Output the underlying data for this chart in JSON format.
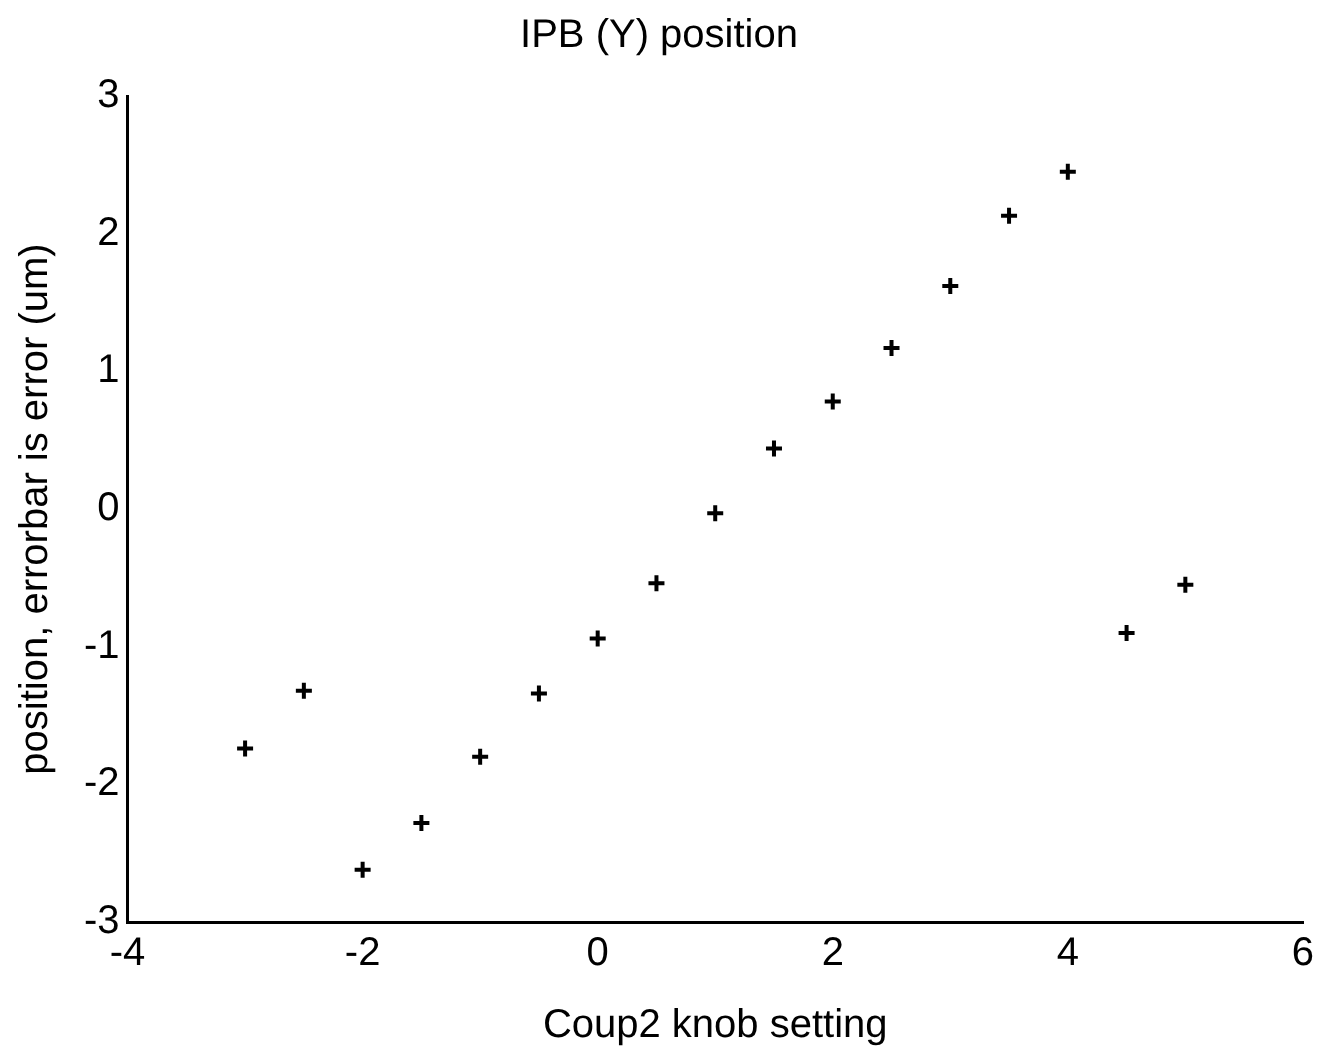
{
  "chart_data": {
    "type": "scatter",
    "title": "IPB (Y) position",
    "xlabel": "Coup2 knob setting",
    "ylabel": "position, errorbar is error (um)",
    "x": [
      -3,
      -2.5,
      -2,
      -1.5,
      -1,
      -0.5,
      0,
      0.5,
      1,
      1.5,
      2,
      2.5,
      3,
      3.5,
      4,
      4.5,
      5
    ],
    "series": [
      {
        "color": "#000000",
        "values": [
          -1.74,
          -1.32,
          -2.62,
          -2.28,
          -1.8,
          -1.34,
          -0.94,
          -0.54,
          -0.03,
          0.44,
          0.78,
          1.17,
          1.62,
          2.13,
          2.45,
          -0.9,
          -0.55
        ]
      }
    ],
    "xlim": [
      -4,
      6
    ],
    "xticks": [
      -4,
      -2,
      0,
      2,
      4,
      6
    ],
    "ylim": [
      -3,
      3
    ],
    "yticks": [
      -3,
      -2,
      -1,
      0,
      1,
      2,
      3
    ],
    "marker": "cross",
    "grid": false,
    "legend": false
  }
}
